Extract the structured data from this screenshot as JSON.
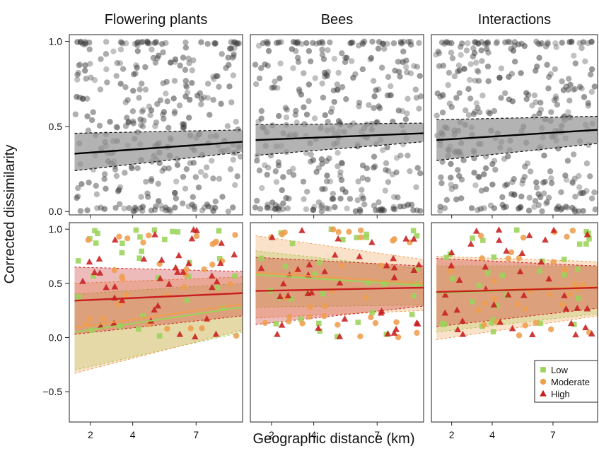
{
  "figure": {
    "y_axis_label": "Corrected dissimilarity",
    "x_axis_label": "Geographic distance (km)"
  },
  "colors": {
    "low": "#9bd35a",
    "moderate": "#ee9e4e",
    "high": "#c81e1e",
    "points": "#3a3a3a",
    "ribbon": "#9a9a9a"
  },
  "chart_data": [
    {
      "type": "scatter",
      "panel": "top-left",
      "title": "Flowering plants",
      "xlim": [
        1,
        9.2
      ],
      "ylim": [
        -0.02,
        1.04
      ],
      "yticks": [
        0.0,
        0.5,
        1.0
      ],
      "ytick_labels": [
        "0.0",
        "0.5",
        "1.0"
      ],
      "xticks": [
        2,
        4,
        7
      ],
      "trend": {
        "x": [
          1.25,
          9.2
        ],
        "fit": [
          0.34,
          0.41
        ],
        "lower": [
          0.24,
          0.35
        ],
        "upper": [
          0.46,
          0.48
        ]
      },
      "scatter_seed": 11
    },
    {
      "type": "scatter",
      "panel": "top-middle",
      "title": "Bees",
      "xlim": [
        1,
        9.2
      ],
      "ylim": [
        -0.02,
        1.04
      ],
      "xticks": [
        2,
        4,
        7
      ],
      "trend": {
        "x": [
          1.25,
          9.2
        ],
        "fit": [
          0.42,
          0.46
        ],
        "lower": [
          0.33,
          0.41
        ],
        "upper": [
          0.51,
          0.52
        ]
      },
      "scatter_seed": 23
    },
    {
      "type": "scatter",
      "panel": "top-right",
      "title": "Interactions",
      "xlim": [
        1,
        9.2
      ],
      "ylim": [
        -0.02,
        1.04
      ],
      "xticks": [
        2,
        4,
        7
      ],
      "trend": {
        "x": [
          1.25,
          9.2
        ],
        "fit": [
          0.42,
          0.48
        ],
        "lower": [
          0.3,
          0.4
        ],
        "upper": [
          0.54,
          0.56
        ]
      },
      "scatter_seed": 37
    },
    {
      "type": "scatter",
      "panel": "bottom-left",
      "xlim": [
        1,
        9.2
      ],
      "ylim": [
        -0.78,
        1.06
      ],
      "yticks": [
        -0.5,
        0.0,
        0.5,
        1.0
      ],
      "ytick_labels": [
        "−0.5",
        "0.0",
        "0.5",
        "1.0"
      ],
      "xticks": [
        2,
        4,
        7
      ],
      "xtick_labels": [
        "2",
        "4",
        "7"
      ],
      "series": [
        {
          "name": "Low",
          "marker": "square",
          "fit": [
            0.05,
            0.28
          ],
          "lower": [
            -0.3,
            0.05
          ],
          "upper": [
            0.4,
            0.5
          ],
          "seed": 101
        },
        {
          "name": "Moderate",
          "marker": "circle",
          "fit": [
            0.09,
            0.31
          ],
          "lower": [
            -0.33,
            0.07
          ],
          "upper": [
            0.5,
            0.56
          ],
          "seed": 102
        },
        {
          "name": "High",
          "marker": "triangle",
          "fit": [
            0.34,
            0.41
          ],
          "lower": [
            0.03,
            0.2
          ],
          "upper": [
            0.65,
            0.61
          ],
          "seed": 103
        }
      ]
    },
    {
      "type": "scatter",
      "panel": "bottom-middle",
      "xlim": [
        1,
        9.2
      ],
      "ylim": [
        -0.78,
        1.06
      ],
      "xticks": [
        2,
        4,
        7
      ],
      "xtick_labels": [
        "2",
        "4",
        "7"
      ],
      "series": [
        {
          "name": "Low",
          "marker": "square",
          "fit": [
            0.58,
            0.48
          ],
          "lower": [
            0.28,
            0.3
          ],
          "upper": [
            0.8,
            0.63
          ],
          "seed": 201
        },
        {
          "name": "Moderate",
          "marker": "circle",
          "fit": [
            0.6,
            0.5
          ],
          "lower": [
            0.18,
            0.25
          ],
          "upper": [
            0.94,
            0.72
          ],
          "seed": 202
        },
        {
          "name": "High",
          "marker": "triangle",
          "fit": [
            0.43,
            0.46
          ],
          "lower": [
            0.12,
            0.29
          ],
          "upper": [
            0.74,
            0.66
          ],
          "seed": 203
        }
      ]
    },
    {
      "type": "scatter",
      "panel": "bottom-right",
      "xlim": [
        1,
        9.2
      ],
      "ylim": [
        -0.78,
        1.06
      ],
      "xticks": [
        2,
        4,
        7
      ],
      "xtick_labels": [
        "2",
        "4",
        "7"
      ],
      "legend": {
        "placement": "bottom-right",
        "entries": [
          "Low",
          "Moderate",
          "High"
        ]
      },
      "series": [
        {
          "name": "Low",
          "marker": "square",
          "fit": [
            0.41,
            0.46
          ],
          "lower": [
            0.05,
            0.22
          ],
          "upper": [
            0.66,
            0.66
          ],
          "seed": 301
        },
        {
          "name": "Moderate",
          "marker": "circle",
          "fit": [
            0.42,
            0.47
          ],
          "lower": [
            -0.02,
            0.2
          ],
          "upper": [
            0.75,
            0.7
          ],
          "seed": 302
        },
        {
          "name": "High",
          "marker": "triangle",
          "fit": [
            0.42,
            0.46
          ],
          "lower": [
            0.1,
            0.27
          ],
          "upper": [
            0.73,
            0.66
          ],
          "seed": 303
        }
      ]
    }
  ]
}
